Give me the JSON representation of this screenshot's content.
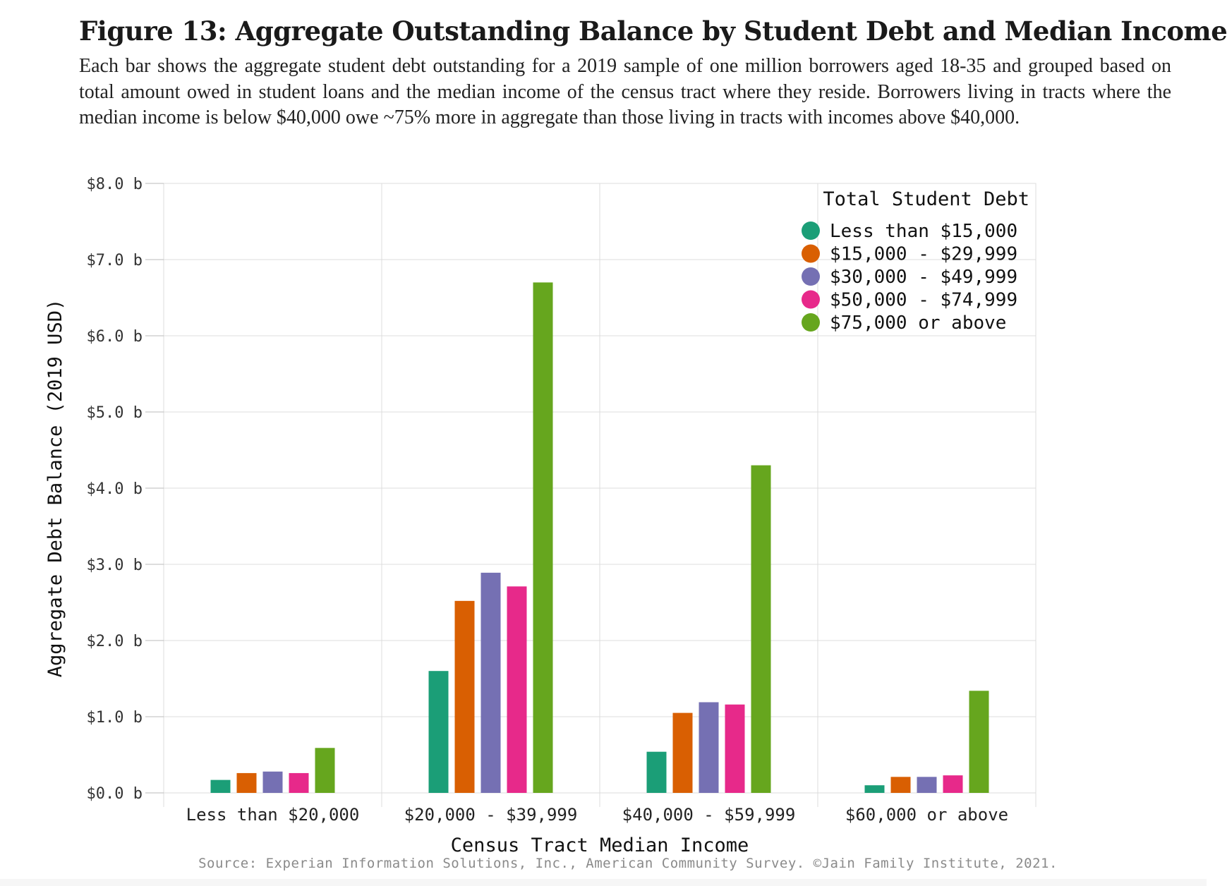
{
  "chart_data": {
    "type": "bar",
    "title": "Figure 13: Aggregate Outstanding Balance by Student Debt and Median Income",
    "subtitle": "Each bar shows the aggregate student debt outstanding for a 2019 sample of one million borrowers aged 18-35 and grouped based on total amount owed in student loans and the median income of the census tract where they reside. Borrowers living in tracts where the median income is below $40,000 owe ~75% more in aggregate than those living in tracts with incomes above $40,000.",
    "xlabel": "Census Tract Median Income",
    "ylabel": "Aggregate Debt Balance (2019 USD)",
    "ylim": [
      0,
      8
    ],
    "y_ticks": [
      0,
      1,
      2,
      3,
      4,
      5,
      6,
      7,
      8
    ],
    "y_tick_labels": [
      "$0.0 b",
      "$1.0 b",
      "$2.0 b",
      "$3.0 b",
      "$4.0 b",
      "$5.0 b",
      "$6.0 b",
      "$7.0 b",
      "$8.0 b"
    ],
    "grid": true,
    "categories": [
      "Less than $20,000",
      "$20,000 - $39,999",
      "$40,000 - $59,999",
      "$60,000 or above"
    ],
    "legend_title": "Total Student Debt",
    "legend_position": "top-right",
    "series": [
      {
        "name": "Less than $15,000",
        "color": "#1b9e77",
        "values": [
          0.17,
          1.6,
          0.54,
          0.1
        ]
      },
      {
        "name": "$15,000 - $29,999",
        "color": "#d95f02",
        "values": [
          0.26,
          2.52,
          1.05,
          0.21
        ]
      },
      {
        "name": "$30,000 - $49,999",
        "color": "#7570b3",
        "values": [
          0.28,
          2.89,
          1.19,
          0.21
        ]
      },
      {
        "name": "$50,000 - $74,999",
        "color": "#e7298a",
        "values": [
          0.26,
          2.71,
          1.16,
          0.23
        ]
      },
      {
        "name": "$75,000 or above",
        "color": "#66a61e",
        "values": [
          0.59,
          6.7,
          4.3,
          1.34
        ]
      }
    ],
    "source": "Source: Experian Information Solutions, Inc., American Community Survey. ©Jain Family Institute, 2021."
  }
}
